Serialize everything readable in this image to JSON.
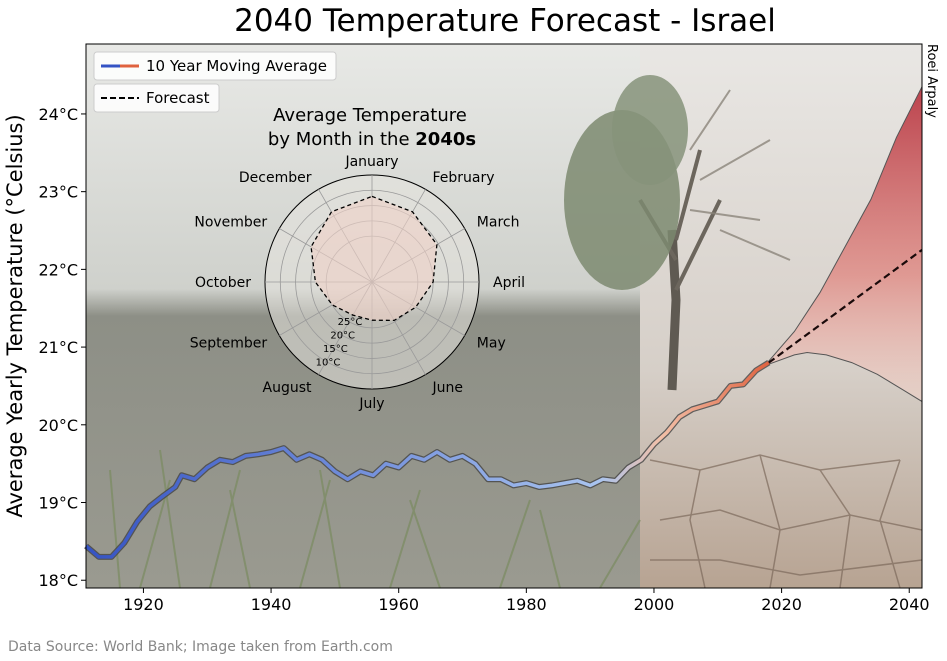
{
  "title": "2040 Temperature Forecast - Israel",
  "credit": "Roei Arpaly",
  "source_note": "Data Source: World Bank; Image taken from Earth.com",
  "colors": {
    "background_sky": "#d9dbd7",
    "field": "#8f8f86",
    "tree": "#7a8a6e",
    "cracked_earth": "#b49e8c",
    "history_cool": "#4a6fd0",
    "history_warm": "#e58a6a",
    "forecast_line": "#000000",
    "band_top": "#c0404a",
    "band_bottom": "#f3d0c6",
    "polar_fill": "#f0d2c8"
  },
  "chart_data": [
    {
      "type": "line",
      "title": "2040 Temperature Forecast - Israel",
      "xlabel": "",
      "ylabel": "Average Yearly Temperature (°Celsius)",
      "xlim": [
        1911,
        2042
      ],
      "ylim": [
        17.9,
        24.9
      ],
      "xticks": [
        1920,
        1940,
        1960,
        1980,
        2000,
        2020,
        2040
      ],
      "yticks": [
        18,
        19,
        20,
        21,
        22,
        23,
        24
      ],
      "ytick_suffix": "°C",
      "grid": false,
      "legend": {
        "placement": "top-left",
        "entries": [
          "10 Year Moving Average",
          "Forecast"
        ]
      },
      "series": [
        {
          "name": "10 Year Moving Average",
          "style": "solid-gradient",
          "points": [
            [
              1911,
              18.44
            ],
            [
              1913,
              18.3
            ],
            [
              1915,
              18.3
            ],
            [
              1917,
              18.48
            ],
            [
              1919,
              18.75
            ],
            [
              1921,
              18.95
            ],
            [
              1923,
              19.08
            ],
            [
              1925,
              19.2
            ],
            [
              1926,
              19.35
            ],
            [
              1928,
              19.3
            ],
            [
              1930,
              19.45
            ],
            [
              1932,
              19.55
            ],
            [
              1934,
              19.52
            ],
            [
              1936,
              19.6
            ],
            [
              1938,
              19.62
            ],
            [
              1940,
              19.65
            ],
            [
              1942,
              19.7
            ],
            [
              1944,
              19.55
            ],
            [
              1946,
              19.62
            ],
            [
              1948,
              19.55
            ],
            [
              1950,
              19.4
            ],
            [
              1952,
              19.3
            ],
            [
              1954,
              19.4
            ],
            [
              1956,
              19.35
            ],
            [
              1958,
              19.5
            ],
            [
              1960,
              19.45
            ],
            [
              1962,
              19.6
            ],
            [
              1964,
              19.55
            ],
            [
              1966,
              19.65
            ],
            [
              1968,
              19.55
            ],
            [
              1970,
              19.6
            ],
            [
              1972,
              19.5
            ],
            [
              1974,
              19.3
            ],
            [
              1976,
              19.3
            ],
            [
              1978,
              19.22
            ],
            [
              1980,
              19.25
            ],
            [
              1982,
              19.2
            ],
            [
              1984,
              19.22
            ],
            [
              1986,
              19.25
            ],
            [
              1988,
              19.28
            ],
            [
              1990,
              19.22
            ],
            [
              1992,
              19.3
            ],
            [
              1994,
              19.28
            ],
            [
              1996,
              19.45
            ],
            [
              1998,
              19.55
            ],
            [
              2000,
              19.75
            ],
            [
              2002,
              19.9
            ],
            [
              2004,
              20.1
            ],
            [
              2006,
              20.2
            ],
            [
              2008,
              20.25
            ],
            [
              2010,
              20.3
            ],
            [
              2011,
              20.4
            ],
            [
              2012,
              20.5
            ],
            [
              2014,
              20.52
            ],
            [
              2016,
              20.7
            ],
            [
              2018,
              20.8
            ]
          ]
        },
        {
          "name": "Forecast",
          "style": "dashed",
          "points": [
            [
              2018,
              20.8
            ],
            [
              2042,
              22.25
            ]
          ]
        },
        {
          "name": "",
          "style": "band-upper",
          "points": [
            [
              2018,
              20.82
            ],
            [
              2022,
              21.2
            ],
            [
              2026,
              21.7
            ],
            [
              2030,
              22.3
            ],
            [
              2034,
              22.9
            ],
            [
              2038,
              23.7
            ],
            [
              2042,
              24.35
            ]
          ]
        },
        {
          "name": "",
          "style": "band-lower",
          "points": [
            [
              2018,
              20.78
            ],
            [
              2022,
              20.9
            ],
            [
              2024,
              20.93
            ],
            [
              2027,
              20.9
            ],
            [
              2031,
              20.8
            ],
            [
              2035,
              20.65
            ],
            [
              2039,
              20.45
            ],
            [
              2042,
              20.3
            ]
          ]
        }
      ]
    },
    {
      "type": "polar",
      "title_line1": "Average Temperature",
      "title_line2_prefix": "by Month in the ",
      "title_line2_bold": "2040s",
      "categories": [
        "January",
        "February",
        "March",
        "April",
        "May",
        "June",
        "July",
        "August",
        "September",
        "October",
        "November",
        "December"
      ],
      "values": [
        12.0,
        13.5,
        15.5,
        20.0,
        23.5,
        25.5,
        27.5,
        27.5,
        25.0,
        21.5,
        17.0,
        13.5
      ],
      "radial_ticks": [
        10,
        15,
        20,
        25
      ],
      "radial_tick_suffix": "°C",
      "rlim": [
        40,
        5
      ],
      "grid": true
    }
  ]
}
